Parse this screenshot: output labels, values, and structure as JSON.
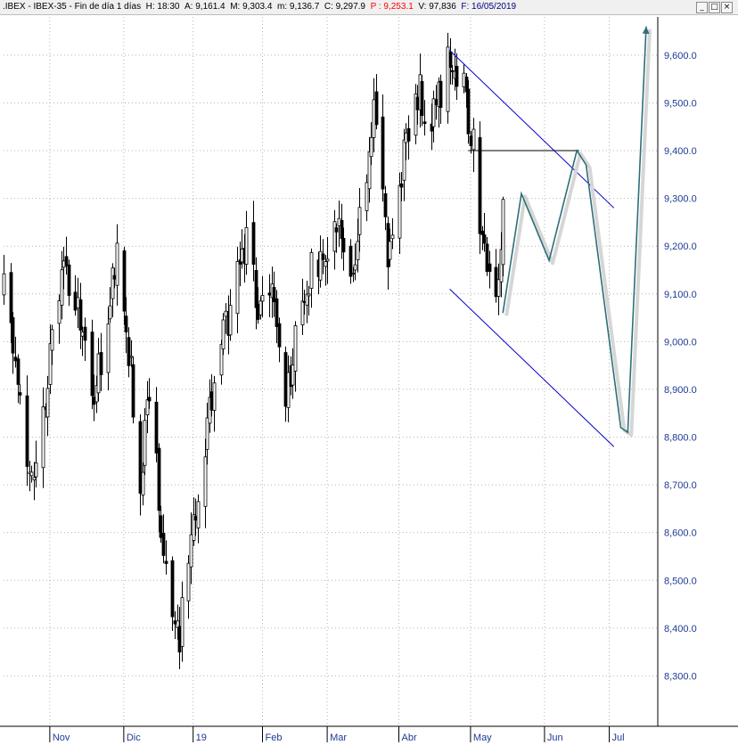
{
  "header": {
    "symbol": ".IBEX - IBEX-35 - Fin de día 1 días",
    "H_label": "H:",
    "H": "18:30",
    "A_label": "A:",
    "A": "9,161.4",
    "M_label": "M:",
    "M": "9,303.4",
    "m_label": "m:",
    "m": "9,136.7",
    "C_label": "C:",
    "C": "9,297.9",
    "P_label": "P :",
    "P": "9,253.1",
    "V_label": "V:",
    "V": "97,836",
    "F_label": "F:",
    "F": "16/05/2019"
  },
  "window_buttons": {
    "minimize": "_",
    "maximize": "□",
    "close": "×"
  },
  "chart_data": {
    "type": "candlestick",
    "title": "",
    "xlabel": "",
    "ylabel": "",
    "ylim": [
      8200,
      9680
    ],
    "y_ticks": [
      8300,
      8400,
      8500,
      8600,
      8700,
      8800,
      8900,
      9000,
      9100,
      9200,
      9300,
      9400,
      9500,
      9600
    ],
    "y_tick_labels": [
      "8,300.0",
      "8,400.0",
      "8,500.0",
      "8,600.0",
      "8,700.0",
      "8,800.0",
      "8,900.0",
      "9,000.0",
      "9,100.0",
      "9,200.0",
      "9,300.0",
      "9,400.0",
      "9,500.0",
      "9,600.0"
    ],
    "x_ticks": [
      "Nov",
      "Dic",
      "19",
      "Feb",
      "Mar",
      "Abr",
      "May",
      "Jun",
      "Jul"
    ],
    "x_tick_dates": [
      "2018-11-01",
      "2018-12-03",
      "2019-01-02",
      "2019-02-01",
      "2019-03-01",
      "2019-04-01",
      "2019-05-02",
      "2019-06-03",
      "2019-07-01"
    ],
    "x_range": [
      "2018-10-12",
      "2019-07-22"
    ],
    "grid": true,
    "candles_anchor": [
      {
        "date": "2018-10-12",
        "close": 9100
      },
      {
        "date": "2018-10-25",
        "close": 8680
      },
      {
        "date": "2018-11-06",
        "close": 9150
      },
      {
        "date": "2018-11-14",
        "close": 9050
      },
      {
        "date": "2018-11-20",
        "close": 8880
      },
      {
        "date": "2018-11-30",
        "close": 9170
      },
      {
        "date": "2018-12-04",
        "close": 9050
      },
      {
        "date": "2018-12-10",
        "close": 8700
      },
      {
        "date": "2018-12-14",
        "close": 8900
      },
      {
        "date": "2018-12-20",
        "close": 8580
      },
      {
        "date": "2018-12-27",
        "close": 8380
      },
      {
        "date": "2019-01-04",
        "close": 8700
      },
      {
        "date": "2019-01-10",
        "close": 8880
      },
      {
        "date": "2019-01-18",
        "close": 9080
      },
      {
        "date": "2019-01-25",
        "close": 9200
      },
      {
        "date": "2019-01-31",
        "close": 9050
      },
      {
        "date": "2019-02-06",
        "close": 9100
      },
      {
        "date": "2019-02-11",
        "close": 8880
      },
      {
        "date": "2019-02-20",
        "close": 9130
      },
      {
        "date": "2019-02-28",
        "close": 9200
      },
      {
        "date": "2019-03-06",
        "close": 9280
      },
      {
        "date": "2019-03-11",
        "close": 9160
      },
      {
        "date": "2019-03-18",
        "close": 9300
      },
      {
        "date": "2019-03-21",
        "close": 9500
      },
      {
        "date": "2019-03-27",
        "close": 9200
      },
      {
        "date": "2019-04-03",
        "close": 9380
      },
      {
        "date": "2019-04-10",
        "close": 9520
      },
      {
        "date": "2019-04-15",
        "close": 9460
      },
      {
        "date": "2019-04-23",
        "close": 9600
      },
      {
        "date": "2019-04-29",
        "close": 9520
      },
      {
        "date": "2019-05-03",
        "close": 9400
      },
      {
        "date": "2019-05-07",
        "close": 9220
      },
      {
        "date": "2019-05-13",
        "close": 9080
      },
      {
        "date": "2019-05-16",
        "close": 9297.9
      }
    ],
    "drawings": {
      "channel_upper": [
        {
          "date": "2019-04-23",
          "y": 9610
        },
        {
          "date": "2019-07-03",
          "y": 9280
        }
      ],
      "channel_lower": [
        {
          "date": "2019-04-23",
          "y": 9110
        },
        {
          "date": "2019-07-03",
          "y": 8780
        }
      ],
      "horizontal_line": [
        {
          "date": "2019-05-01",
          "y": 9400
        },
        {
          "date": "2019-06-18",
          "y": 9400
        }
      ],
      "projection_path": [
        {
          "date": "2019-05-16",
          "y": 9060
        },
        {
          "date": "2019-05-24",
          "y": 9310
        },
        {
          "date": "2019-06-05",
          "y": 9170
        },
        {
          "date": "2019-06-17",
          "y": 9400
        },
        {
          "date": "2019-06-21",
          "y": 9370
        },
        {
          "date": "2019-07-06",
          "y": 8820
        },
        {
          "date": "2019-07-09",
          "y": 8810
        },
        {
          "date": "2019-07-17",
          "y": 9660
        }
      ],
      "colors": {
        "channel": "#0000cc",
        "hline": "#000000",
        "projection": "#2e6f7a"
      }
    }
  }
}
